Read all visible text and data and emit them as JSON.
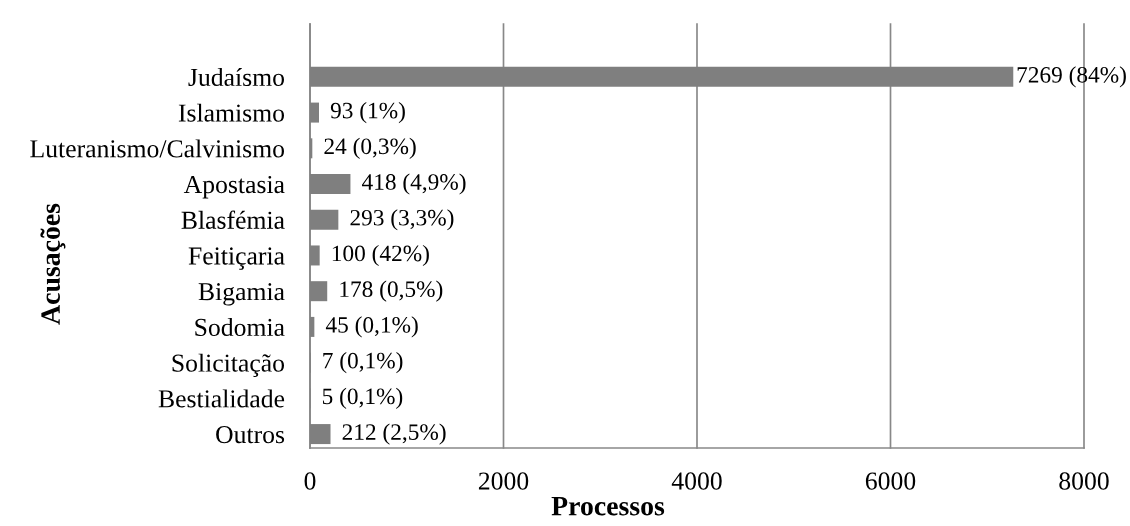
{
  "chart_data": {
    "type": "bar",
    "orientation": "horizontal",
    "xlabel": "Processos",
    "ylabel": "Acusações",
    "categories": [
      "Judaísmo",
      "Islamismo",
      "Luteranismo/Calvinismo",
      "Apostasia",
      "Blasfémia",
      "Feitiçaria",
      "Bigamia",
      "Sodomia",
      "Solicitação",
      "Bestialidade",
      "Outros"
    ],
    "values": [
      7269,
      93,
      24,
      418,
      293,
      100,
      178,
      45,
      7,
      5,
      212
    ],
    "value_labels": [
      "7269 (84%)",
      "93 (1%)",
      "24 (0,3%)",
      "418 (4,9%)",
      "293 (3,3%)",
      "100 (42%)",
      "178 (0,5%)",
      "45 (0,1%)",
      "7 (0,1%)",
      "5 (0,1%)",
      "212 (2,5%)"
    ],
    "color": "#7f7f7f",
    "xlim": [
      0,
      8000
    ],
    "xticks": [
      0,
      2000,
      4000,
      6000,
      8000
    ],
    "grid": "x"
  }
}
